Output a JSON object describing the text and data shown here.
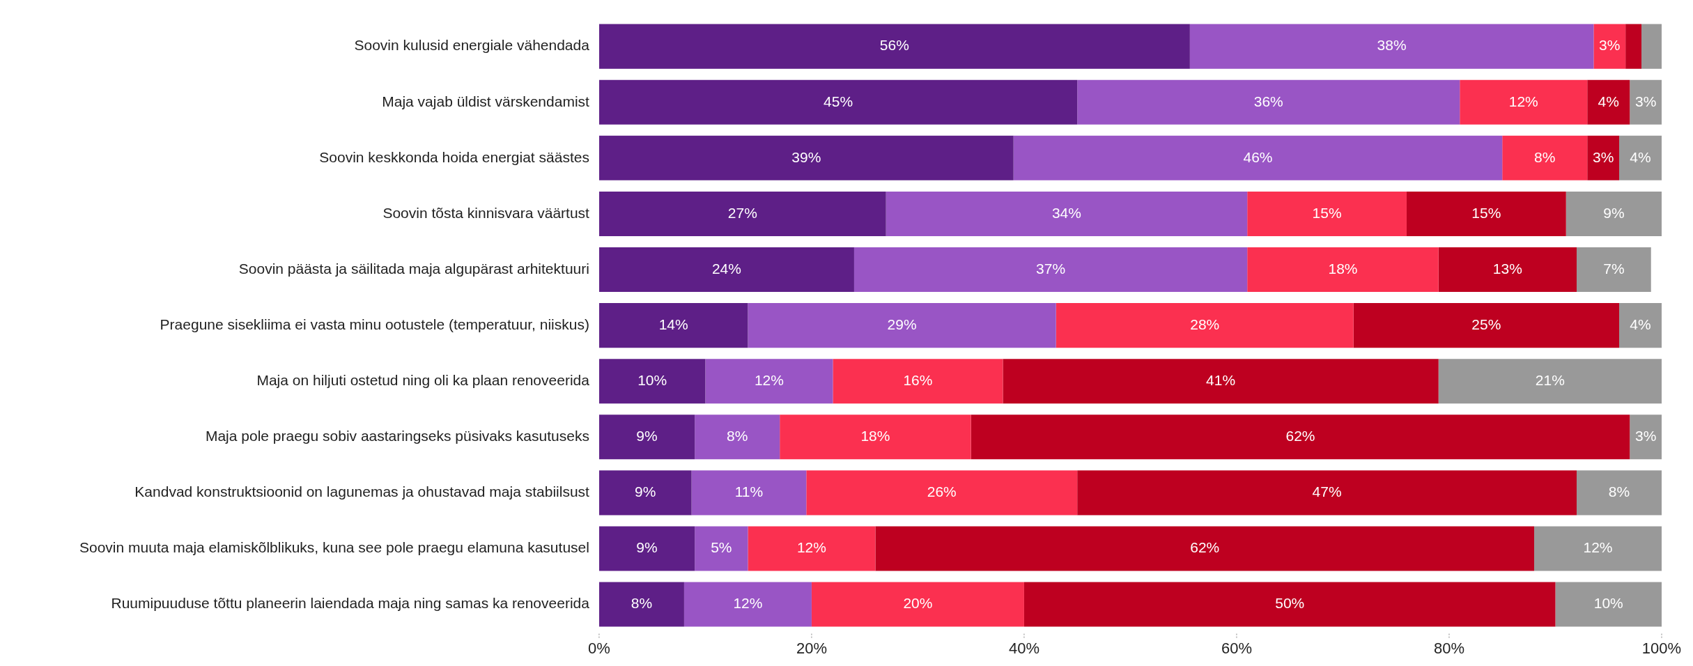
{
  "chart_data": {
    "type": "bar",
    "orientation": "horizontal",
    "stacked": true,
    "categories": [
      "Soovin kulusid energiale vähendada",
      "Maja vajab üldist värskendamist",
      "Soovin keskkonda hoida energiat säästes",
      "Soovin tõsta kinnisvara väärtust",
      "Soovin päästa ja säilitada maja algupärast arhitektuuri",
      "Praegune sisekliima ei vasta minu ootustele (temperatuur, niiskus)",
      "Maja on hiljuti ostetud ning oli ka plaan renoveerida",
      "Maja pole praegu sobiv aastaringseks püsivaks kasutuseks",
      "Kandvad konstruktsioonid on lagunemas ja ohustavad maja stabiilsust",
      "Soovin muuta maja elamiskõlblikuks, kuna see pole praegu elamuna kasutusel",
      "Ruumipuuduse tõttu planeerin laiendada maja ning samas ka renoveerida"
    ],
    "series": [
      {
        "color": "#5e1f87",
        "values": [
          55.6,
          45,
          39,
          27,
          24,
          14,
          10,
          9,
          8.7,
          9,
          8
        ],
        "value_labels": [
          "56%",
          "45%",
          "39%",
          "27%",
          "24%",
          "14%",
          "10%",
          "9%",
          "9%",
          "9%",
          "8%"
        ]
      },
      {
        "color": "#9955c5",
        "values": [
          38,
          36,
          46,
          34,
          37,
          29,
          12,
          8,
          10.8,
          5,
          12
        ],
        "value_labels": [
          "38%",
          "36%",
          "46%",
          "34%",
          "37%",
          "29%",
          "12%",
          "8%",
          "11%",
          "5%",
          "12%"
        ]
      },
      {
        "color": "#fb3050",
        "values": [
          3,
          12,
          8,
          15,
          18,
          28,
          16,
          18,
          25.5,
          12,
          20
        ],
        "value_labels": [
          "3%",
          "12%",
          "8%",
          "15%",
          "18%",
          "28%",
          "16%",
          "18%",
          "26%",
          "12%",
          "20%"
        ]
      },
      {
        "color": "#be0020",
        "values": [
          1.5,
          4,
          3,
          15,
          13,
          25,
          41,
          62,
          47,
          62,
          50
        ],
        "value_labels": [
          null,
          "4%",
          "3%",
          "15%",
          "13%",
          "25%",
          "41%",
          "62%",
          "47%",
          "62%",
          "50%"
        ]
      },
      {
        "color": "#999999",
        "values": [
          1.9,
          3,
          4,
          9,
          7,
          4,
          21,
          3,
          8,
          12,
          10
        ],
        "value_labels": [
          null,
          "3%",
          "4%",
          "9%",
          "7%",
          "4%",
          "21%",
          "3%",
          "8%",
          "12%",
          "10%"
        ]
      }
    ],
    "xlim": [
      0,
      100
    ],
    "xticks": [
      {
        "value": 0,
        "label": "0%"
      },
      {
        "value": 20,
        "label": "20%"
      },
      {
        "value": 40,
        "label": "40%"
      },
      {
        "value": 60,
        "label": "60%"
      },
      {
        "value": 80,
        "label": "80%"
      },
      {
        "value": 100,
        "label": "100%"
      }
    ],
    "grid": false,
    "legend": false
  }
}
